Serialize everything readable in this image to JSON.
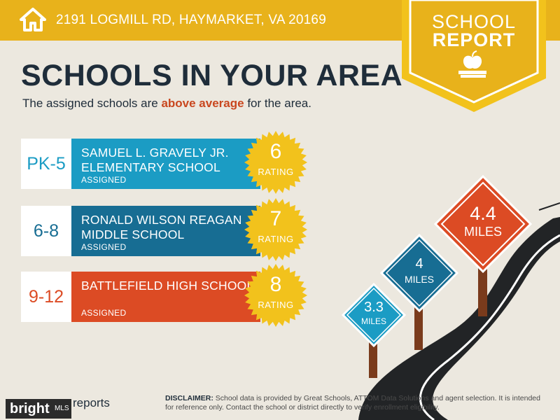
{
  "header": {
    "address": "2191 LOGMILL RD, HAYMARKET, VA 20169",
    "bg_color": "#e8b21b",
    "icon": "home-icon"
  },
  "badge": {
    "line1": "SCHOOL",
    "line2": "REPORT",
    "icon": "apple-books-icon"
  },
  "title": "SCHOOLS IN YOUR AREA",
  "subtitle": {
    "prefix": "The assigned schools are ",
    "highlight": "above average",
    "suffix": " for the area."
  },
  "schools": [
    {
      "grades": "PK-5",
      "name": "SAMUEL L. GRAVELY JR. ELEMENTARY SCHOOL",
      "status": "ASSIGNED",
      "rating": "6",
      "rating_label": "RATING",
      "color": "#1b9cc4"
    },
    {
      "grades": "6-8",
      "name": "RONALD WILSON REAGAN MIDDLE SCHOOL",
      "status": "ASSIGNED",
      "rating": "7",
      "rating_label": "RATING",
      "color": "#176d93"
    },
    {
      "grades": "9-12",
      "name": "BATTLEFIELD HIGH SCHOOL",
      "status": "ASSIGNED",
      "rating": "8",
      "rating_label": "RATING",
      "color": "#dc4b24"
    }
  ],
  "distances": [
    {
      "value": "3.3",
      "unit": "MILES",
      "color": "#1b9cc4"
    },
    {
      "value": "4",
      "unit": "MILES",
      "color": "#176d93"
    },
    {
      "value": "4.4",
      "unit": "MILES",
      "color": "#dc4b24"
    }
  ],
  "footer": {
    "logo_text": "bright",
    "logo_mls": "MLS",
    "reports_text": "reports",
    "disclaimer_label": "DISCLAIMER:",
    "disclaimer_text": " School data is provided by Great Schools, ATTOM Data Solutions and agent selection. It is intended for reference only. Contact the school or district directly to verify enrollment eligibility."
  }
}
